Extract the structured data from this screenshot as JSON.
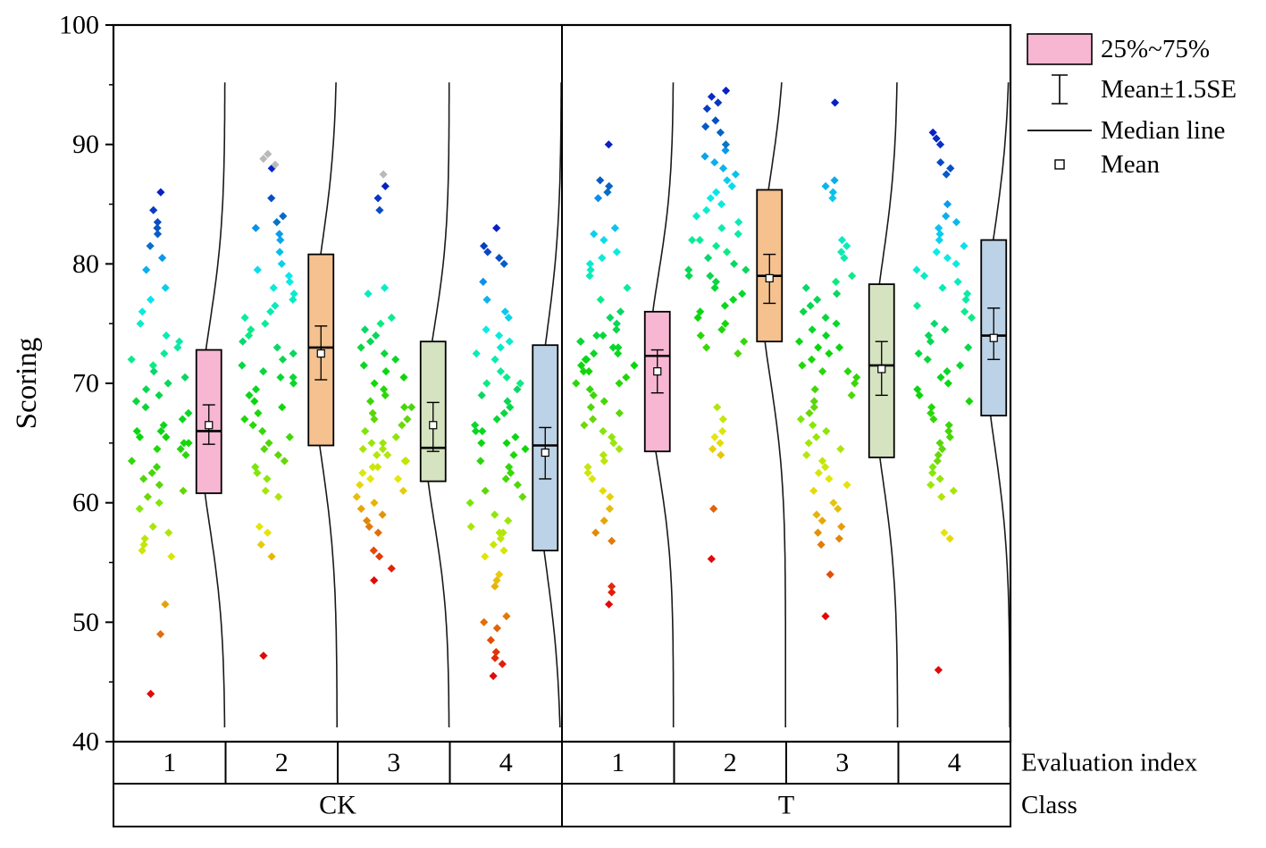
{
  "chart_data": {
    "type": "scatter-box",
    "title": "",
    "ylabel": "Scoring",
    "ylim": [
      40,
      100
    ],
    "yticks": [
      40,
      50,
      60,
      70,
      80,
      90,
      100
    ],
    "x_index_labels": [
      "1",
      "2",
      "3",
      "4",
      "1",
      "2",
      "3",
      "4"
    ],
    "class_labels": [
      "CK",
      "T"
    ],
    "axis_row_labels": [
      "Evaluation index",
      "Class"
    ],
    "legend": [
      {
        "label": "25%~75%",
        "glyph": "box",
        "color": "#F7B6D2"
      },
      {
        "label": "Mean±1.5SE",
        "glyph": "errorbar"
      },
      {
        "label": "Median line",
        "glyph": "line"
      },
      {
        "label": "Mean",
        "glyph": "square"
      }
    ],
    "groups": [
      {
        "class": "CK",
        "index": "1",
        "color": "#F7B6D2",
        "stats": {
          "q1": 60.8,
          "q3": 72.8,
          "median": 66.0,
          "mean": 66.5,
          "se_low": 64.9,
          "se_high": 68.2,
          "curve_sd": 8.5
        },
        "points": [
          44,
          49,
          51.5,
          55.5,
          56,
          56.5,
          57,
          57.5,
          58,
          59.5,
          60,
          60.5,
          61,
          61.5,
          62,
          62.5,
          63,
          63.5,
          64,
          64.5,
          64.5,
          65,
          65,
          65.5,
          65.5,
          66,
          66,
          66.5,
          67,
          67.5,
          68,
          68.5,
          69,
          69.5,
          70,
          70.5,
          71,
          71.5,
          72,
          72.5,
          73,
          73.5,
          74,
          75,
          76,
          77,
          78,
          79.5,
          80.5,
          81.5,
          82.5,
          83,
          83.5,
          84.5,
          86
        ],
        "gray_points": []
      },
      {
        "class": "CK",
        "index": "2",
        "color": "#F4C18F",
        "stats": {
          "q1": 64.8,
          "q3": 80.8,
          "median": 73.0,
          "mean": 72.5,
          "se_low": 70.3,
          "se_high": 74.8,
          "curve_sd": 9.0
        },
        "points": [
          47.2,
          55.5,
          56.5,
          57.5,
          58,
          60.5,
          61,
          62,
          62.5,
          63,
          63.5,
          64,
          64.5,
          65,
          65.5,
          66,
          66.5,
          67,
          67.5,
          68,
          68.5,
          69,
          69.5,
          70,
          70.5,
          70.5,
          71,
          71.5,
          72,
          72.5,
          73,
          73.5,
          74,
          74.5,
          75,
          75.5,
          76,
          76.5,
          77,
          77.5,
          78,
          78.5,
          79,
          79.5,
          80,
          81,
          82,
          82.5,
          83,
          83.5,
          84,
          85.5,
          88
        ],
        "gray_points": [
          88.3,
          88.8,
          89.2
        ]
      },
      {
        "class": "CK",
        "index": "3",
        "color": "#D5E3C0",
        "stats": {
          "q1": 61.8,
          "q3": 73.5,
          "median": 64.6,
          "mean": 66.5,
          "se_low": 64.3,
          "se_high": 68.4,
          "curve_sd": 8.0
        },
        "points": [
          53.5,
          54.5,
          55.5,
          56,
          57.5,
          58,
          58.5,
          59,
          59.5,
          60,
          60.5,
          61,
          61.5,
          62,
          62,
          62.5,
          63,
          63,
          63.5,
          63.5,
          64,
          64,
          64.5,
          64.5,
          65,
          65,
          65.5,
          66,
          66.5,
          67,
          67,
          67.5,
          68,
          68,
          68.5,
          69,
          69.5,
          70,
          70.5,
          71,
          71.5,
          72,
          72.5,
          73,
          73.5,
          74,
          74.5,
          75,
          75.5,
          77.5,
          78,
          84.5,
          85.5,
          86.5
        ],
        "gray_points": [
          87.5
        ]
      },
      {
        "class": "CK",
        "index": "4",
        "color": "#BCD2E6",
        "stats": {
          "q1": 56.0,
          "q3": 73.2,
          "median": 64.8,
          "mean": 64.2,
          "se_low": 62.0,
          "se_high": 66.3,
          "curve_sd": 9.5
        },
        "points": [
          45.5,
          46.5,
          47,
          47.5,
          48.5,
          49.5,
          50,
          50.5,
          53,
          53.5,
          54,
          55.5,
          56,
          56.5,
          57,
          57.5,
          57.5,
          58,
          58.5,
          59,
          60,
          60.5,
          61,
          61.5,
          62,
          62.5,
          63,
          63.5,
          64,
          64.5,
          65,
          65,
          65.5,
          66,
          66,
          66.5,
          67,
          67.5,
          68,
          68.5,
          69,
          69.5,
          70,
          70,
          70.5,
          71,
          72,
          72.5,
          73,
          73.5,
          74,
          74.5,
          75.5,
          76,
          77,
          78.5,
          80,
          80.5,
          81,
          81.5,
          83
        ],
        "gray_points": []
      },
      {
        "class": "T",
        "index": "1",
        "color": "#F7B6D2",
        "stats": {
          "q1": 64.3,
          "q3": 76.0,
          "median": 72.3,
          "mean": 71.0,
          "se_low": 69.2,
          "se_high": 72.8,
          "curve_sd": 8.0
        },
        "points": [
          51.5,
          52.5,
          53,
          56.8,
          57.5,
          58.5,
          59.5,
          60.5,
          61,
          62,
          62.5,
          63,
          63.5,
          64,
          64.5,
          65,
          65.5,
          66,
          66.5,
          67,
          67.5,
          68,
          68.5,
          69,
          69.5,
          70,
          70,
          70.5,
          71,
          71,
          71.5,
          71.5,
          72,
          72,
          72.5,
          72.5,
          73,
          73,
          73.5,
          73.5,
          74,
          74,
          74.5,
          75,
          75.5,
          76,
          77,
          78,
          79,
          79.5,
          80,
          80.5,
          81,
          82,
          82.5,
          83,
          85.5,
          86,
          86.5,
          87,
          90
        ],
        "gray_points": []
      },
      {
        "class": "T",
        "index": "2",
        "color": "#F4C18F",
        "stats": {
          "q1": 73.5,
          "q3": 86.2,
          "median": 79.0,
          "mean": 78.8,
          "se_low": 76.7,
          "se_high": 80.8,
          "curve_sd": 8.5
        },
        "points": [
          55.3,
          59.5,
          64,
          64.5,
          65,
          65.5,
          66,
          67,
          68,
          72.5,
          73,
          73.5,
          74,
          74.5,
          75,
          75.5,
          76,
          76.5,
          77,
          77.5,
          78,
          78.5,
          79,
          79,
          79.5,
          79.5,
          80,
          80.5,
          81,
          81.5,
          82,
          82,
          82.5,
          83,
          83.5,
          84,
          84.5,
          85,
          85.5,
          86,
          86.5,
          87,
          87.5,
          88,
          88.5,
          89,
          89.5,
          90,
          91,
          91.5,
          92,
          93,
          93.5,
          94,
          94.5
        ],
        "gray_points": []
      },
      {
        "class": "T",
        "index": "3",
        "color": "#D5E3C0",
        "stats": {
          "q1": 63.8,
          "q3": 78.3,
          "median": 71.5,
          "mean": 71.2,
          "se_low": 69.0,
          "se_high": 73.5,
          "curve_sd": 9.0
        },
        "points": [
          50.5,
          54,
          56.5,
          57,
          57.5,
          58,
          58.5,
          59,
          59.5,
          60,
          61,
          61.5,
          62,
          62.5,
          63,
          63.5,
          64,
          64.5,
          65,
          65.5,
          66,
          66.5,
          67,
          67.5,
          68,
          68.5,
          69,
          69.5,
          70,
          70.5,
          71,
          71,
          71.5,
          72,
          72.5,
          73,
          73,
          73.5,
          74,
          74.5,
          75,
          75.5,
          76,
          76.5,
          77,
          77.5,
          78,
          78.5,
          79,
          80.5,
          81,
          81.5,
          82,
          85.5,
          86,
          86.5,
          87,
          93.5
        ],
        "gray_points": []
      },
      {
        "class": "T",
        "index": "4",
        "color": "#BCD2E6",
        "stats": {
          "q1": 67.3,
          "q3": 82.0,
          "median": 74.0,
          "mean": 73.8,
          "se_low": 72.0,
          "se_high": 76.3,
          "curve_sd": 9.0
        },
        "points": [
          46,
          57,
          57.5,
          60.5,
          61,
          61.5,
          62,
          62.5,
          63,
          63.5,
          64,
          64.5,
          65,
          65.5,
          66,
          66.5,
          67,
          67.5,
          68,
          68.5,
          69,
          69.5,
          70,
          70.5,
          71,
          71.5,
          72,
          72.5,
          73,
          73.5,
          74,
          74.5,
          75,
          75.5,
          76,
          76.5,
          77,
          77.5,
          78,
          78.5,
          79,
          79.5,
          80,
          80.5,
          81,
          81.5,
          82,
          82.5,
          83,
          83.5,
          84,
          85,
          87.5,
          88,
          88.5,
          90,
          90.5,
          91
        ],
        "gray_points": []
      }
    ]
  }
}
